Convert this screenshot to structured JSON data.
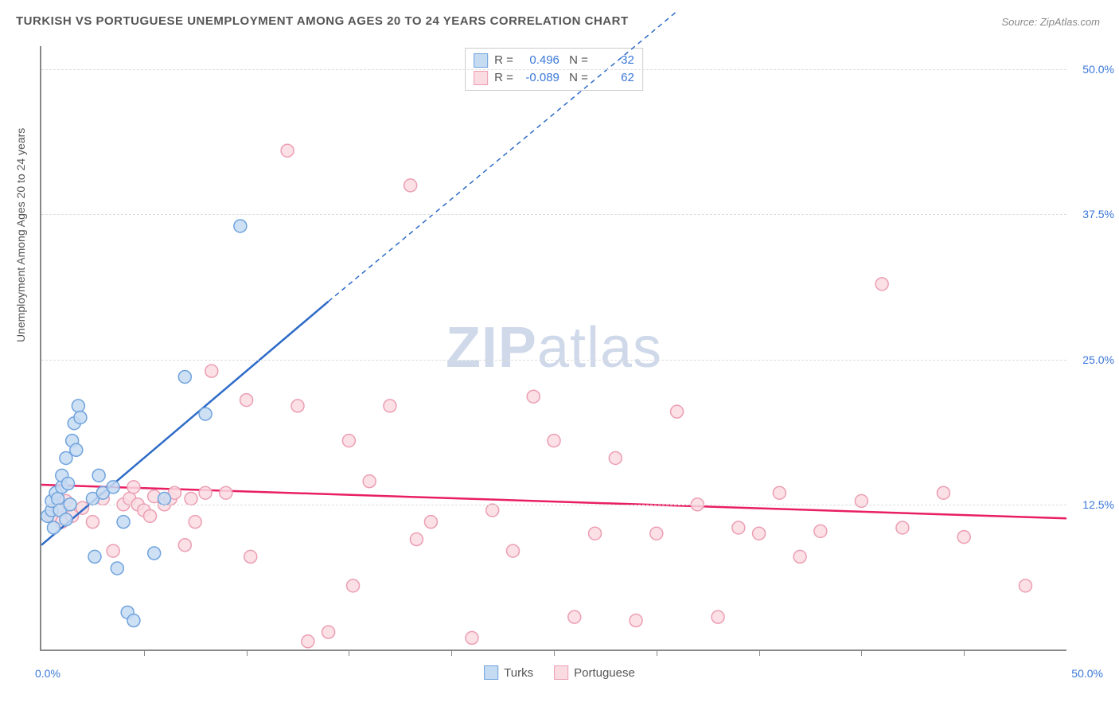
{
  "title": "TURKISH VS PORTUGUESE UNEMPLOYMENT AMONG AGES 20 TO 24 YEARS CORRELATION CHART",
  "source": "Source: ZipAtlas.com",
  "watermark_bold": "ZIP",
  "watermark_rest": "atlas",
  "y_axis_label": "Unemployment Among Ages 20 to 24 years",
  "chart": {
    "type": "scatter",
    "xlim": [
      0,
      50
    ],
    "ylim": [
      0,
      52
    ],
    "x_origin_label": "0.0%",
    "x_max_label": "50.0%",
    "x_tick_positions": [
      5,
      10,
      15,
      20,
      25,
      30,
      35,
      40,
      45
    ],
    "y_ticks": [
      {
        "v": 12.5,
        "label": "12.5%"
      },
      {
        "v": 25.0,
        "label": "25.0%"
      },
      {
        "v": 37.5,
        "label": "37.5%"
      },
      {
        "v": 50.0,
        "label": "50.0%"
      }
    ],
    "background_color": "#ffffff",
    "grid_color": "#dddddd",
    "axis_color": "#888888",
    "marker_radius": 8,
    "marker_stroke_width": 1.5,
    "series": [
      {
        "name": "Turks",
        "fill": "#c5dbf2",
        "stroke": "#6fa3dd",
        "line_color": "#2e6bc7",
        "R": "0.496",
        "N": "32",
        "trend": {
          "x0": 0,
          "y0": 9,
          "x1_solid": 14,
          "y1_solid": 30,
          "x1_dash": 31,
          "y1_dash": 55
        },
        "points": [
          [
            0.3,
            11.5
          ],
          [
            0.5,
            12
          ],
          [
            0.5,
            12.8
          ],
          [
            0.6,
            10.5
          ],
          [
            0.7,
            13.5
          ],
          [
            0.8,
            13
          ],
          [
            0.9,
            12
          ],
          [
            1,
            14
          ],
          [
            1,
            15
          ],
          [
            1.2,
            11.2
          ],
          [
            1.2,
            16.5
          ],
          [
            1.3,
            14.3
          ],
          [
            1.4,
            12.5
          ],
          [
            1.5,
            18
          ],
          [
            1.6,
            19.5
          ],
          [
            1.7,
            17.2
          ],
          [
            1.8,
            21
          ],
          [
            1.9,
            20
          ],
          [
            2.5,
            13
          ],
          [
            2.6,
            8
          ],
          [
            2.8,
            15
          ],
          [
            3,
            13.5
          ],
          [
            3.5,
            14
          ],
          [
            3.7,
            7
          ],
          [
            4,
            11
          ],
          [
            4.2,
            3.2
          ],
          [
            4.5,
            2.5
          ],
          [
            5.5,
            8.3
          ],
          [
            6,
            13
          ],
          [
            7,
            23.5
          ],
          [
            8,
            20.3
          ],
          [
            9.7,
            36.5
          ]
        ]
      },
      {
        "name": "Portuguese",
        "fill": "#fadbe2",
        "stroke": "#ec9eb3",
        "line_color": "#e91e63",
        "R": "-0.089",
        "N": "62",
        "trend": {
          "x0": 0,
          "y0": 14.2,
          "x1_solid": 50,
          "y1_solid": 11.3,
          "x1_dash": 50,
          "y1_dash": 11.3
        },
        "points": [
          [
            0.5,
            11.5
          ],
          [
            0.8,
            12.3
          ],
          [
            1,
            11
          ],
          [
            1.2,
            12.8
          ],
          [
            1.5,
            11.5
          ],
          [
            2,
            12.2
          ],
          [
            2.5,
            11
          ],
          [
            3,
            13
          ],
          [
            3.5,
            8.5
          ],
          [
            4,
            12.5
          ],
          [
            4.3,
            13
          ],
          [
            4.5,
            14
          ],
          [
            4.7,
            12.5
          ],
          [
            5,
            12
          ],
          [
            5.3,
            11.5
          ],
          [
            5.5,
            13.2
          ],
          [
            6,
            12.5
          ],
          [
            6.3,
            13
          ],
          [
            6.5,
            13.5
          ],
          [
            7,
            9
          ],
          [
            7.3,
            13
          ],
          [
            7.5,
            11
          ],
          [
            8,
            13.5
          ],
          [
            8.3,
            24
          ],
          [
            9,
            13.5
          ],
          [
            10,
            21.5
          ],
          [
            10.2,
            8
          ],
          [
            12,
            43
          ],
          [
            12.5,
            21
          ],
          [
            13,
            0.7
          ],
          [
            14,
            1.5
          ],
          [
            15,
            18
          ],
          [
            15.2,
            5.5
          ],
          [
            16,
            14.5
          ],
          [
            17,
            21
          ],
          [
            18,
            40
          ],
          [
            18.3,
            9.5
          ],
          [
            19,
            11
          ],
          [
            21,
            1
          ],
          [
            22,
            12
          ],
          [
            23,
            8.5
          ],
          [
            24,
            21.8
          ],
          [
            25,
            18
          ],
          [
            26,
            2.8
          ],
          [
            27,
            10
          ],
          [
            28,
            16.5
          ],
          [
            29,
            2.5
          ],
          [
            30,
            10
          ],
          [
            31,
            20.5
          ],
          [
            32,
            12.5
          ],
          [
            33,
            2.8
          ],
          [
            34,
            10.5
          ],
          [
            35,
            10
          ],
          [
            36,
            13.5
          ],
          [
            37,
            8
          ],
          [
            38,
            10.2
          ],
          [
            40,
            12.8
          ],
          [
            41,
            31.5
          ],
          [
            42,
            10.5
          ],
          [
            44,
            13.5
          ],
          [
            45,
            9.7
          ],
          [
            48,
            5.5
          ]
        ]
      }
    ]
  },
  "legend": [
    {
      "label": "Turks"
    },
    {
      "label": "Portuguese"
    }
  ]
}
